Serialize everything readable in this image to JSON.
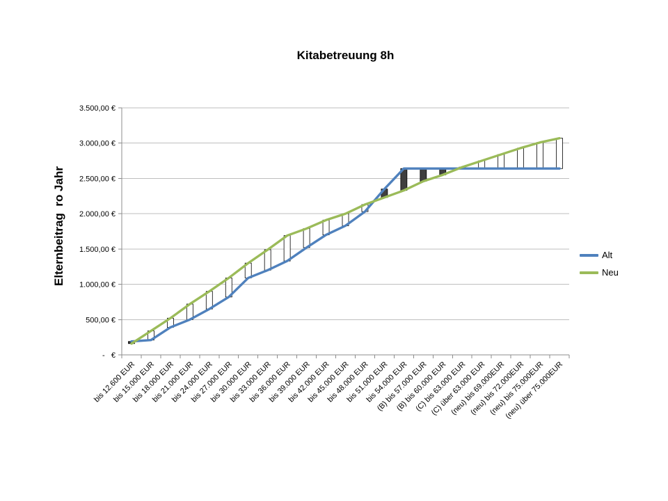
{
  "chart_data": {
    "type": "line",
    "title": "Kitabetreuung 8h",
    "xlabel": "",
    "ylabel": "Elternbeitrag  ro Jahr",
    "categories": [
      "bis 12.600 EUR",
      "bis 15.000 EUR",
      "bis 18.000 EUR",
      "bis 21.000 EUR",
      "bis 24.000 EUR",
      "bis 27.000 EUR",
      "bis 30.000 EUR",
      "bis 33.000 EUR",
      "bis 36.000 EUR",
      "bis 39.000 EUR",
      "bis 42.000 EUR",
      "bis 45.000 EUR",
      "bis 48.000 EUR",
      "bis 51.000 EUR",
      "bis 54.000 EUR",
      "(B) bis 57.000 EUR",
      "(B) bis 60.000 EUR",
      "(C) bis 63.000 EUR",
      "(C) über 63.000 EUR",
      "(neu) bis 69.000EUR",
      "(neu) bis 72.000EUR",
      "(neu) bis 75.000EUR",
      "(neu) über 75.000EUR"
    ],
    "series": [
      {
        "name": "Alt",
        "color": "#4F81BD",
        "values": [
          190,
          210,
          390,
          500,
          650,
          820,
          1090,
          1200,
          1330,
          1520,
          1700,
          1830,
          2030,
          2350,
          2640,
          2640,
          2640,
          2640,
          2640,
          2640,
          2640,
          2640,
          2640
        ]
      },
      {
        "name": "Neu",
        "color": "#9BBB59",
        "values": [
          160,
          340,
          520,
          720,
          900,
          1090,
          1300,
          1490,
          1690,
          1790,
          1910,
          2000,
          2130,
          2230,
          2330,
          2460,
          2550,
          2660,
          2750,
          2840,
          2930,
          3010,
          3070
        ]
      }
    ],
    "ylim": [
      0,
      3500
    ],
    "y_tick_step": 500,
    "y_tick_labels": [
      "-   €",
      "500,00 €",
      "1.000,00 €",
      "1.500,00 €",
      "2.000,00 €",
      "2.500,00 €",
      "3.000,00 €",
      "3.500,00 €"
    ],
    "grid": true,
    "legend_position": "right",
    "up_down_bars": {
      "up_fill": "#FFFFFF",
      "down_fill": "#3F3F3F",
      "border": "#000000"
    }
  },
  "colors": {
    "background": "#FFFFFF",
    "gridline": "#BEBEBE",
    "axis": "#8C8C8C",
    "text": "#000000"
  }
}
